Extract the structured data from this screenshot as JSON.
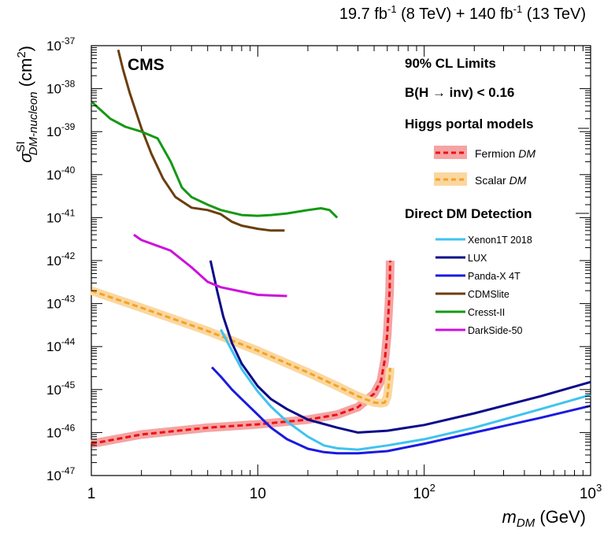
{
  "chart_data": {
    "type": "line",
    "lumi_label": {
      "part1": "19.7 fb",
      "exp1": "-1",
      "part2": " (8 TeV) + 140 fb",
      "exp2": "-1",
      "part3": " (13 TeV)"
    },
    "experiment": "CMS",
    "xlabel": {
      "main": "m",
      "sub": "DM",
      "unit": " (GeV)"
    },
    "ylabel": {
      "main": "σ",
      "sup": "SI",
      "sub": "DM-nucleon",
      "unit": " (cm",
      "unit_sup": "2",
      "unit_end": ")"
    },
    "x_scale": "log",
    "y_scale": "log",
    "xlim": [
      1,
      1000
    ],
    "ylim": [
      1e-47,
      1e-37
    ],
    "x_ticks": [
      {
        "value": 1,
        "base": "1",
        "exp": ""
      },
      {
        "value": 10,
        "base": "10",
        "exp": ""
      },
      {
        "value": 100,
        "base": "10",
        "exp": "2"
      },
      {
        "value": 1000,
        "base": "10",
        "exp": "3"
      }
    ],
    "y_ticks": [
      {
        "value": 1e-37,
        "base": "10",
        "exp": "-37"
      },
      {
        "value": 1e-38,
        "base": "10",
        "exp": "-38"
      },
      {
        "value": 1e-39,
        "base": "10",
        "exp": "-39"
      },
      {
        "value": 1e-40,
        "base": "10",
        "exp": "-40"
      },
      {
        "value": 1e-41,
        "base": "10",
        "exp": "-41"
      },
      {
        "value": 1e-42,
        "base": "10",
        "exp": "-42"
      },
      {
        "value": 1e-43,
        "base": "10",
        "exp": "-43"
      },
      {
        "value": 1e-44,
        "base": "10",
        "exp": "-44"
      },
      {
        "value": 1e-45,
        "base": "10",
        "exp": "-45"
      },
      {
        "value": 1e-46,
        "base": "10",
        "exp": "-46"
      },
      {
        "value": 1e-47,
        "base": "10",
        "exp": "-47"
      }
    ],
    "annotations": {
      "cl_limits": "90% CL Limits",
      "bh_inv_part1": "B(H ",
      "bh_inv_arrow": "→",
      "bh_inv_part2": " inv) < 0.16",
      "higgs_header": "Higgs portal models",
      "direct_header": "Direct DM Detection"
    },
    "higgs_portal": [
      {
        "name": "Fermion",
        "name_italic": "DM",
        "color": "#ee1111",
        "band_color": "#f5a3a3",
        "x": [
          1,
          2,
          5,
          10,
          20,
          30,
          40,
          50,
          55,
          58,
          60,
          62,
          62.5
        ],
        "y": [
          5.5e-47,
          9e-47,
          1.3e-46,
          1.55e-46,
          2e-46,
          2.6e-46,
          3.9e-46,
          8e-46,
          1.6e-45,
          5e-45,
          2e-44,
          2e-43,
          1e-42
        ]
      },
      {
        "name": "Scalar",
        "name_italic": "DM",
        "color": "#f5a323",
        "band_color": "#fad7a0",
        "x": [
          1,
          2,
          5,
          10,
          20,
          30,
          40,
          50,
          55,
          58,
          60,
          62,
          62.5
        ],
        "y": [
          2e-43,
          8e-44,
          2.3e-44,
          8e-45,
          2.5e-45,
          1.2e-45,
          7e-46,
          5e-46,
          4.8e-46,
          5e-46,
          7e-46,
          2e-45,
          3.2e-45
        ]
      }
    ],
    "series": [
      {
        "name": "Xenon1T 2018",
        "color": "#3fc3f0",
        "x": [
          6,
          7,
          8,
          10,
          12,
          15,
          20,
          25,
          30,
          40,
          60,
          100,
          200,
          500,
          1000
        ],
        "y": [
          2.5e-44,
          8e-45,
          3e-45,
          9e-46,
          4e-46,
          1.8e-46,
          8e-47,
          5e-47,
          4.3e-47,
          4e-47,
          5e-47,
          7e-47,
          1.3e-46,
          3.5e-46,
          7.5e-46
        ]
      },
      {
        "name": "LUX",
        "color": "#0a0a8a",
        "x": [
          5.2,
          5.7,
          6.2,
          7,
          8,
          10,
          12,
          15,
          20,
          30,
          40,
          60,
          100,
          200,
          500,
          1000
        ],
        "y": [
          1e-42,
          2e-43,
          5e-44,
          1.2e-44,
          4e-45,
          1.2e-45,
          6e-46,
          3.5e-46,
          2e-46,
          1.3e-46,
          1e-46,
          1.1e-46,
          1.5e-46,
          2.8e-46,
          7e-46,
          1.5e-45
        ]
      },
      {
        "name": "Panda-X 4T",
        "color": "#1a1ae0",
        "x": [
          5.3,
          6,
          7,
          8,
          10,
          12,
          15,
          20,
          25,
          30,
          40,
          60,
          100,
          200,
          500,
          1000
        ],
        "y": [
          3.3e-45,
          2e-45,
          1e-45,
          6e-46,
          2.6e-46,
          1.3e-46,
          7e-47,
          4.2e-47,
          3.5e-47,
          3.3e-47,
          3.3e-47,
          3.7e-47,
          5.5e-47,
          1e-46,
          2.2e-46,
          4.2e-46
        ]
      },
      {
        "name": "CDMSlite",
        "color": "#6b3e0c",
        "x": [
          1.45,
          1.55,
          1.7,
          2,
          2.3,
          2.7,
          3.2,
          4,
          5,
          6,
          7,
          8,
          10,
          12,
          14.5
        ],
        "y": [
          8e-38,
          2.8e-38,
          8e-39,
          1.2e-39,
          3e-40,
          8e-41,
          3e-41,
          1.7e-41,
          1.5e-41,
          1.2e-41,
          8e-42,
          6.5e-42,
          5.5e-42,
          5e-42,
          5e-42
        ]
      },
      {
        "name": "Cresst-II",
        "color": "#149914",
        "x": [
          1,
          1.3,
          1.6,
          2,
          2.5,
          3,
          3.5,
          4,
          5,
          6,
          7,
          8,
          10,
          12,
          15,
          20,
          24,
          27,
          30
        ],
        "y": [
          5e-39,
          2e-39,
          1.3e-39,
          1e-39,
          7e-40,
          2e-40,
          5e-41,
          3e-41,
          2e-41,
          1.5e-41,
          1.3e-41,
          1.15e-41,
          1.1e-41,
          1.15e-41,
          1.25e-41,
          1.5e-41,
          1.65e-41,
          1.5e-41,
          1e-41
        ]
      },
      {
        "name": "DarkSide-50",
        "color": "#cc11dd",
        "x": [
          1.8,
          2,
          2.5,
          3,
          4,
          5,
          6,
          8,
          10,
          12,
          15
        ],
        "y": [
          4e-42,
          3e-42,
          2.2e-42,
          1.7e-42,
          7e-43,
          3.2e-43,
          2.4e-43,
          1.9e-43,
          1.6e-43,
          1.55e-43,
          1.5e-43
        ]
      }
    ]
  }
}
